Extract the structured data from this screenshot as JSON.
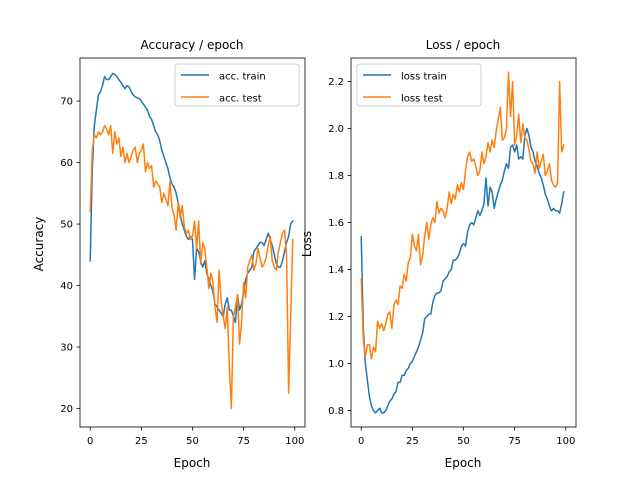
{
  "chart_data": [
    {
      "type": "line",
      "title": "Accuracy / epoch",
      "xlabel": "Epoch",
      "ylabel": "Accuracy",
      "xlim": [
        -5,
        105
      ],
      "ylim": [
        17,
        77
      ],
      "xticks": [
        0,
        25,
        50,
        75,
        100
      ],
      "yticks": [
        20,
        30,
        40,
        50,
        60,
        70
      ],
      "grid": false,
      "legend_position": "top-right",
      "series": [
        {
          "name": "acc. train",
          "color": "#1f77b4",
          "x": [
            0,
            1,
            2,
            3,
            4,
            5,
            6,
            7,
            8,
            9,
            10,
            11,
            12,
            13,
            14,
            15,
            16,
            17,
            18,
            19,
            20,
            21,
            22,
            23,
            24,
            25,
            26,
            27,
            28,
            29,
            30,
            31,
            32,
            33,
            34,
            35,
            36,
            37,
            38,
            39,
            40,
            41,
            42,
            43,
            44,
            45,
            46,
            47,
            48,
            49,
            50,
            51,
            52,
            53,
            54,
            55,
            56,
            57,
            58,
            59,
            60,
            61,
            62,
            63,
            64,
            65,
            66,
            67,
            68,
            69,
            70,
            71,
            72,
            73,
            74,
            75,
            76,
            77,
            78,
            79,
            80,
            81,
            82,
            83,
            84,
            85,
            86,
            87,
            88,
            89,
            90,
            91,
            92,
            93,
            94,
            95,
            96,
            97,
            98,
            99
          ],
          "y": [
            44,
            59,
            66,
            68.5,
            71,
            71.5,
            72.5,
            74,
            73.5,
            73.5,
            74,
            74.5,
            74.3,
            74,
            73.5,
            73,
            72.5,
            72,
            72.5,
            72.3,
            71.5,
            71,
            70.7,
            70.5,
            70.4,
            70,
            69.5,
            69,
            68.5,
            67.5,
            67,
            66,
            65,
            64.5,
            63.5,
            62,
            61,
            60,
            59,
            57.5,
            56.5,
            56,
            55,
            53.5,
            51.5,
            50,
            49,
            48,
            47.5,
            48,
            47.5,
            41,
            46,
            45.5,
            44,
            43,
            44,
            42,
            41,
            40,
            39,
            37,
            36.5,
            36,
            35.5,
            35,
            37,
            38,
            36,
            36,
            35,
            34,
            38.5,
            36,
            37,
            39,
            41,
            42,
            42.5,
            43,
            45.5,
            46,
            46.5,
            47,
            47,
            46.5,
            47.5,
            48.5,
            47.5,
            46.5,
            45,
            43.5,
            43,
            43,
            44,
            45.5,
            47,
            48,
            50,
            50.5
          ]
        },
        {
          "name": "acc. test",
          "color": "#ff7f0e",
          "x": [
            0,
            1,
            2,
            3,
            4,
            5,
            6,
            7,
            8,
            9,
            10,
            11,
            12,
            13,
            14,
            15,
            16,
            17,
            18,
            19,
            20,
            21,
            22,
            23,
            24,
            25,
            26,
            27,
            28,
            29,
            30,
            31,
            32,
            33,
            34,
            35,
            36,
            37,
            38,
            39,
            40,
            41,
            42,
            43,
            44,
            45,
            46,
            47,
            48,
            49,
            50,
            51,
            52,
            53,
            54,
            55,
            56,
            57,
            58,
            59,
            60,
            61,
            62,
            63,
            64,
            65,
            66,
            67,
            68,
            69,
            70,
            71,
            72,
            73,
            74,
            75,
            76,
            77,
            78,
            79,
            80,
            81,
            82,
            83,
            84,
            85,
            86,
            87,
            88,
            89,
            90,
            91,
            92,
            93,
            94,
            95,
            96,
            97,
            98,
            99
          ],
          "y": [
            52,
            62,
            64.5,
            64,
            65,
            64.5,
            65,
            66,
            65.5,
            64.5,
            66,
            61.5,
            65,
            63,
            64,
            61,
            62.5,
            60,
            61.5,
            60,
            61,
            62,
            62.5,
            60,
            61.5,
            62,
            63,
            58.5,
            60,
            59,
            59.5,
            56,
            57,
            56.5,
            56,
            53.5,
            55,
            54,
            53,
            57,
            52.5,
            51.5,
            49,
            53.5,
            51,
            53,
            49.5,
            48.5,
            49,
            47.5,
            48,
            50.5,
            46,
            50.5,
            43.5,
            47,
            46,
            43,
            39.5,
            42,
            40.5,
            36.5,
            34,
            42.5,
            37.5,
            35,
            33,
            36.5,
            27,
            20,
            35,
            36.5,
            38.5,
            30.5,
            34,
            40.5,
            38,
            43,
            44,
            45,
            42.5,
            43.5,
            46,
            44.5,
            43,
            43.5,
            44.5,
            46.5,
            48,
            44,
            43,
            42.5,
            45.5,
            47,
            48.5,
            49,
            45,
            22.5,
            35,
            47.5
          ]
        }
      ]
    },
    {
      "type": "line",
      "title": "Loss / epoch",
      "xlabel": "Epoch",
      "ylabel": "Loss",
      "xlim": [
        -5,
        105
      ],
      "ylim": [
        0.73,
        2.3
      ],
      "xticks": [
        0,
        25,
        50,
        75,
        100
      ],
      "yticks": [
        0.8,
        1.0,
        1.2,
        1.4,
        1.6,
        1.8,
        2.0,
        2.2
      ],
      "grid": false,
      "legend_position": "top-left",
      "series": [
        {
          "name": "loss train",
          "color": "#1f77b4",
          "x": [
            0,
            1,
            2,
            3,
            4,
            5,
            6,
            7,
            8,
            9,
            10,
            11,
            12,
            13,
            14,
            15,
            16,
            17,
            18,
            19,
            20,
            21,
            22,
            23,
            24,
            25,
            26,
            27,
            28,
            29,
            30,
            31,
            32,
            33,
            34,
            35,
            36,
            37,
            38,
            39,
            40,
            41,
            42,
            43,
            44,
            45,
            46,
            47,
            48,
            49,
            50,
            51,
            52,
            53,
            54,
            55,
            56,
            57,
            58,
            59,
            60,
            61,
            62,
            63,
            64,
            65,
            66,
            67,
            68,
            69,
            70,
            71,
            72,
            73,
            74,
            75,
            76,
            77,
            78,
            79,
            80,
            81,
            82,
            83,
            84,
            85,
            86,
            87,
            88,
            89,
            90,
            91,
            92,
            93,
            94,
            95,
            96,
            97,
            98,
            99
          ],
          "y": [
            1.54,
            1.15,
            1.0,
            0.93,
            0.86,
            0.82,
            0.8,
            0.79,
            0.8,
            0.81,
            0.79,
            0.79,
            0.8,
            0.82,
            0.84,
            0.85,
            0.87,
            0.88,
            0.92,
            0.92,
            0.95,
            0.95,
            0.97,
            0.98,
            1.0,
            1.01,
            1.03,
            1.05,
            1.07,
            1.1,
            1.13,
            1.19,
            1.2,
            1.21,
            1.21,
            1.26,
            1.29,
            1.3,
            1.3,
            1.31,
            1.35,
            1.36,
            1.37,
            1.39,
            1.4,
            1.44,
            1.44,
            1.45,
            1.47,
            1.5,
            1.51,
            1.5,
            1.56,
            1.59,
            1.6,
            1.59,
            1.62,
            1.65,
            1.63,
            1.65,
            1.68,
            1.79,
            1.67,
            1.75,
            1.73,
            1.66,
            1.7,
            1.73,
            1.76,
            1.78,
            1.82,
            1.85,
            1.83,
            1.92,
            1.93,
            1.9,
            1.93,
            1.87,
            1.88,
            1.87,
            1.97,
            2.0,
            1.97,
            1.92,
            1.9,
            1.86,
            1.84,
            1.81,
            1.79,
            1.76,
            1.72,
            1.7,
            1.67,
            1.65,
            1.66,
            1.65,
            1.65,
            1.64,
            1.68,
            1.73
          ]
        },
        {
          "name": "loss test",
          "color": "#ff7f0e",
          "x": [
            0,
            1,
            2,
            3,
            4,
            5,
            6,
            7,
            8,
            9,
            10,
            11,
            12,
            13,
            14,
            15,
            16,
            17,
            18,
            19,
            20,
            21,
            22,
            23,
            24,
            25,
            26,
            27,
            28,
            29,
            30,
            31,
            32,
            33,
            34,
            35,
            36,
            37,
            38,
            39,
            40,
            41,
            42,
            43,
            44,
            45,
            46,
            47,
            48,
            49,
            50,
            51,
            52,
            53,
            54,
            55,
            56,
            57,
            58,
            59,
            60,
            61,
            62,
            63,
            64,
            65,
            66,
            67,
            68,
            69,
            70,
            71,
            72,
            73,
            74,
            75,
            76,
            77,
            78,
            79,
            80,
            81,
            82,
            83,
            84,
            85,
            86,
            87,
            88,
            89,
            90,
            91,
            92,
            93,
            94,
            95,
            96,
            97,
            98,
            99
          ],
          "y": [
            1.36,
            1.1,
            1.03,
            1.08,
            1.08,
            1.02,
            1.07,
            1.05,
            1.18,
            1.15,
            1.17,
            1.14,
            1.17,
            1.21,
            1.22,
            1.15,
            1.25,
            1.27,
            1.25,
            1.33,
            1.32,
            1.38,
            1.35,
            1.43,
            1.45,
            1.55,
            1.5,
            1.48,
            1.55,
            1.42,
            1.46,
            1.54,
            1.6,
            1.53,
            1.59,
            1.62,
            1.6,
            1.69,
            1.64,
            1.66,
            1.65,
            1.62,
            1.66,
            1.73,
            1.68,
            1.72,
            1.7,
            1.76,
            1.73,
            1.77,
            1.74,
            1.82,
            1.88,
            1.9,
            1.86,
            1.87,
            1.84,
            1.8,
            1.82,
            1.9,
            1.85,
            1.88,
            1.94,
            1.9,
            1.95,
            1.92,
            1.99,
            2.04,
            2.09,
            1.95,
            1.96,
            2.0,
            2.24,
            2.05,
            2.2,
            1.93,
            1.97,
            2.06,
            1.94,
            2.02,
            1.96,
            1.95,
            1.91,
            1.86,
            1.85,
            1.81,
            1.9,
            1.83,
            1.86,
            1.89,
            1.8,
            1.82,
            1.85,
            1.78,
            1.76,
            1.75,
            1.77,
            2.2,
            1.9,
            1.93
          ]
        }
      ]
    }
  ]
}
